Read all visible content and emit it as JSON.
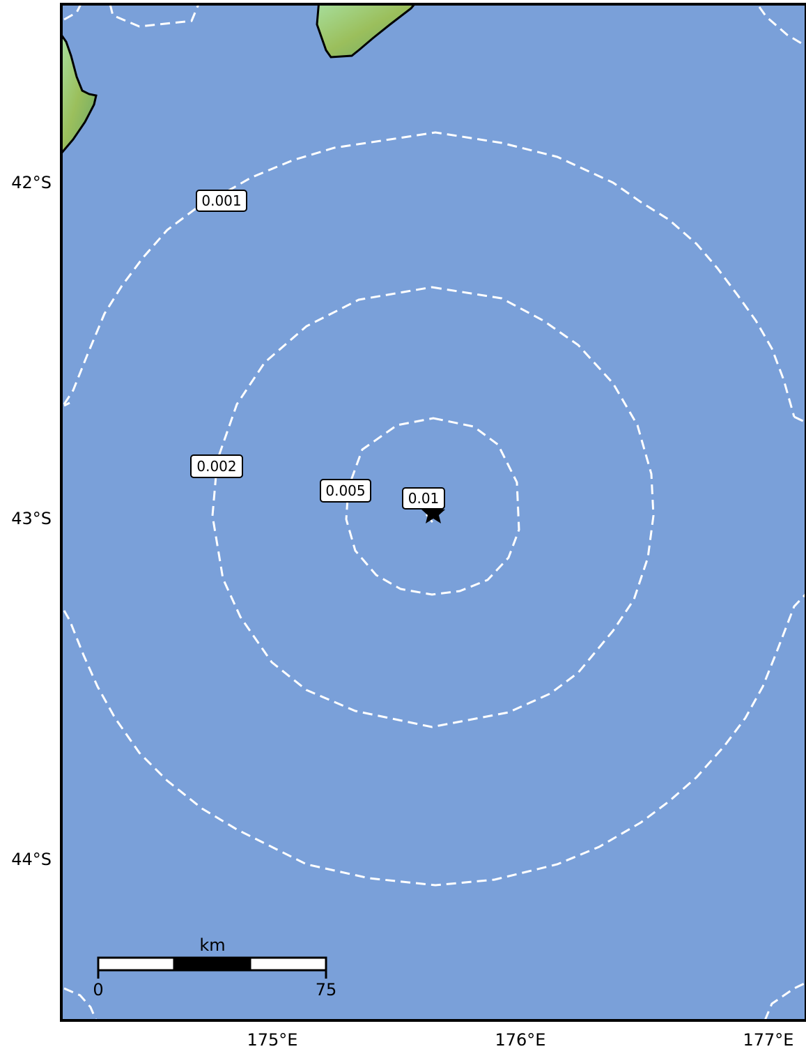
{
  "map": {
    "ocean_color": "#7aa0d9",
    "land_color": "#8fcf8a",
    "lat_ticks": [
      {
        "value": -42,
        "label": "42°S"
      },
      {
        "value": -43,
        "label": "43°S"
      },
      {
        "value": -44,
        "label": "44°S"
      }
    ],
    "lon_ticks": [
      {
        "value": 175,
        "label": "175°E"
      },
      {
        "value": 176,
        "label": "176°E"
      },
      {
        "value": 177,
        "label": "177°E"
      }
    ],
    "contours": [
      {
        "level": 0.001,
        "label": "0.001"
      },
      {
        "level": 0.002,
        "label": "0.002"
      },
      {
        "level": 0.005,
        "label": "0.005"
      },
      {
        "level": 0.01,
        "label": "0.01"
      }
    ],
    "epicenter": {
      "lon": 175.64,
      "lat": -42.98,
      "icon": "star-icon"
    },
    "scale_bar": {
      "unit": "km",
      "start_label": "0",
      "end_label": "75"
    }
  }
}
